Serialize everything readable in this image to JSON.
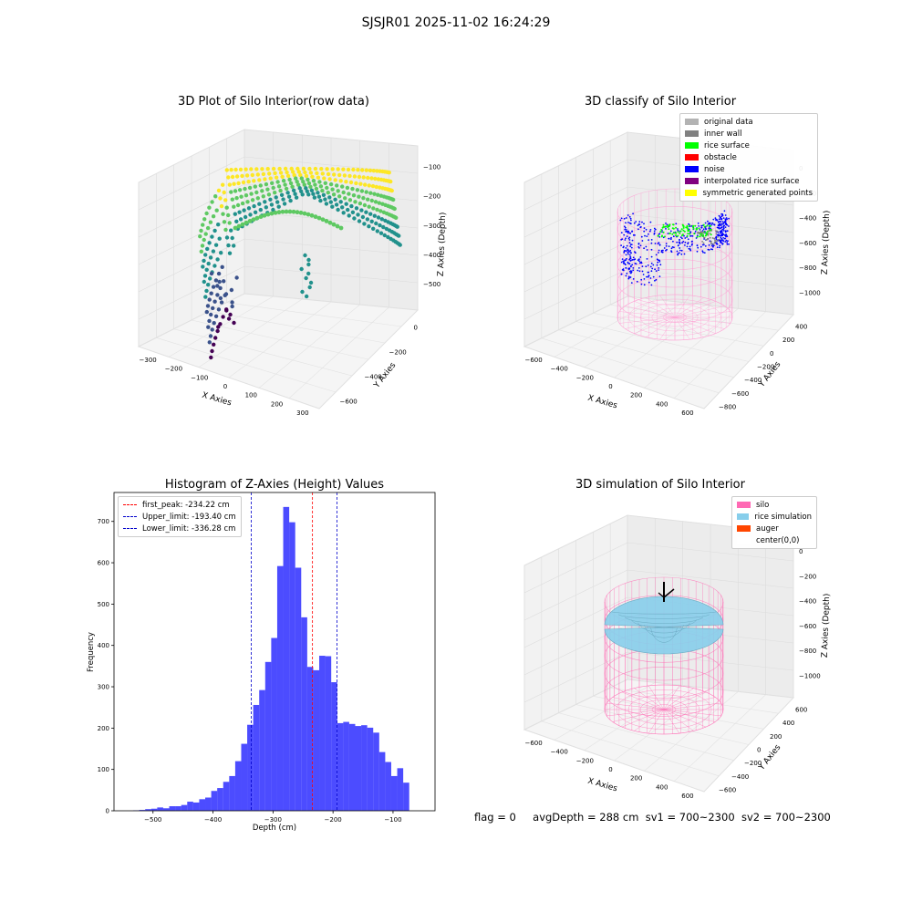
{
  "suptitle": "SJSJR01 2025-11-02 16:24:29",
  "panels": {
    "raw": {
      "title": "3D Plot of Silo Interior(row data)",
      "xlabel": "X Axies",
      "ylabel": "Y Axies",
      "zlabel": "Z Axies (Depth)",
      "xticks": [
        "−300",
        "−200",
        "−100",
        "0",
        "100",
        "200",
        "300"
      ],
      "yticks": [
        "0",
        "−200",
        "−400",
        "−600"
      ],
      "zticks": [
        "−100",
        "−200",
        "−300",
        "−400",
        "−500"
      ],
      "colormap": [
        "#440154",
        "#3b528b",
        "#21918c",
        "#5ec962",
        "#fde725"
      ]
    },
    "classify": {
      "title": "3D classify of Silo Interior",
      "xlabel": "X Axies",
      "ylabel": "Y Axies",
      "zlabel": "Z Axies (Depth)",
      "xticks": [
        "−600",
        "−400",
        "−200",
        "0",
        "200",
        "400",
        "600"
      ],
      "yticks": [
        "400",
        "200",
        "0",
        "−200",
        "−400",
        "−600",
        "−800"
      ],
      "zticks": [
        "0",
        "−200",
        "−400",
        "−600",
        "−800",
        "−1000"
      ],
      "legend": [
        {
          "label": "original data",
          "color": "#b3b3b3"
        },
        {
          "label": "inner wall",
          "color": "#808080"
        },
        {
          "label": "rice surface",
          "color": "#00ff00"
        },
        {
          "label": "obstacle",
          "color": "#ff0000"
        },
        {
          "label": "noise",
          "color": "#0000ff"
        },
        {
          "label": "interpolated rice surface",
          "color": "#800080"
        },
        {
          "label": "symmetric generated points",
          "color": "#ffff00"
        }
      ]
    },
    "simulation": {
      "title": "3D simulation of Silo Interior",
      "xlabel": "X Axies",
      "ylabel": "Y Axies",
      "zlabel": "Z Axies (Depth)",
      "xticks": [
        "−600",
        "−400",
        "−200",
        "0",
        "200",
        "400",
        "600"
      ],
      "yticks": [
        "600",
        "400",
        "200",
        "0",
        "−200",
        "−400",
        "−600"
      ],
      "zticks": [
        "0",
        "−200",
        "−400",
        "−600",
        "−800",
        "−1000"
      ],
      "legend": [
        {
          "label": "silo",
          "color": "#ff69b4"
        },
        {
          "label": "rice simulation",
          "color": "#87ceeb"
        },
        {
          "label": "auger",
          "color": "#ff4500"
        },
        {
          "label": "center(0,0)",
          "color": "#ffffff"
        }
      ]
    }
  },
  "footer": {
    "flag": "flag = 0",
    "avg": "avgDepth = 288 cm",
    "sv1": "sv1 = 700~2300",
    "sv2": "sv2 = 700~2300"
  },
  "chart_data": {
    "type": "bar",
    "title": "Histogram of Z-Axies (Height) Values",
    "xlabel": "Depth (cm)",
    "ylabel": "Frequency",
    "xlim": [
      -565,
      -30
    ],
    "ylim": [
      0,
      770
    ],
    "xticks": [
      -500,
      -400,
      -300,
      -200,
      -100
    ],
    "yticks": [
      0,
      100,
      200,
      300,
      400,
      500,
      600,
      700
    ],
    "bar_color": "#0000ff",
    "bin_width": 10,
    "bins_start": -533,
    "values": [
      1,
      2,
      4,
      5,
      8,
      6,
      11,
      11,
      14,
      22,
      20,
      28,
      32,
      48,
      55,
      70,
      84,
      120,
      162,
      208,
      256,
      292,
      360,
      418,
      592,
      735,
      698,
      588,
      468,
      348,
      340,
      375,
      374,
      311,
      212,
      215,
      210,
      205,
      207,
      201,
      189,
      142,
      118,
      84,
      103,
      68
    ],
    "vlines": [
      {
        "label": "first_peak: -234.22 cm",
        "x": -234.22,
        "color": "#ff0000"
      },
      {
        "label": "Upper_limit: -193.40 cm",
        "x": -193.4,
        "color": "#0000cc"
      },
      {
        "label": "Lower_limit: -336.28 cm",
        "x": -336.28,
        "color": "#0000cc"
      }
    ],
    "legend_position": "upper-left"
  }
}
